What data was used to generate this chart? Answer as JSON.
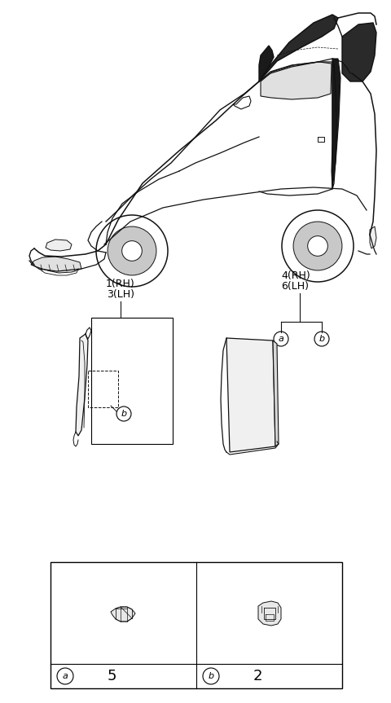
{
  "bg_color": "#ffffff",
  "fig_width": 4.8,
  "fig_height": 8.63,
  "label_1rh": "1(RH)",
  "label_3lh": "3(LH)",
  "label_4rh": "4(RH)",
  "label_6lh": "6(LH)",
  "label_a": "a",
  "label_b": "b",
  "label_5": "5",
  "label_2": "2"
}
